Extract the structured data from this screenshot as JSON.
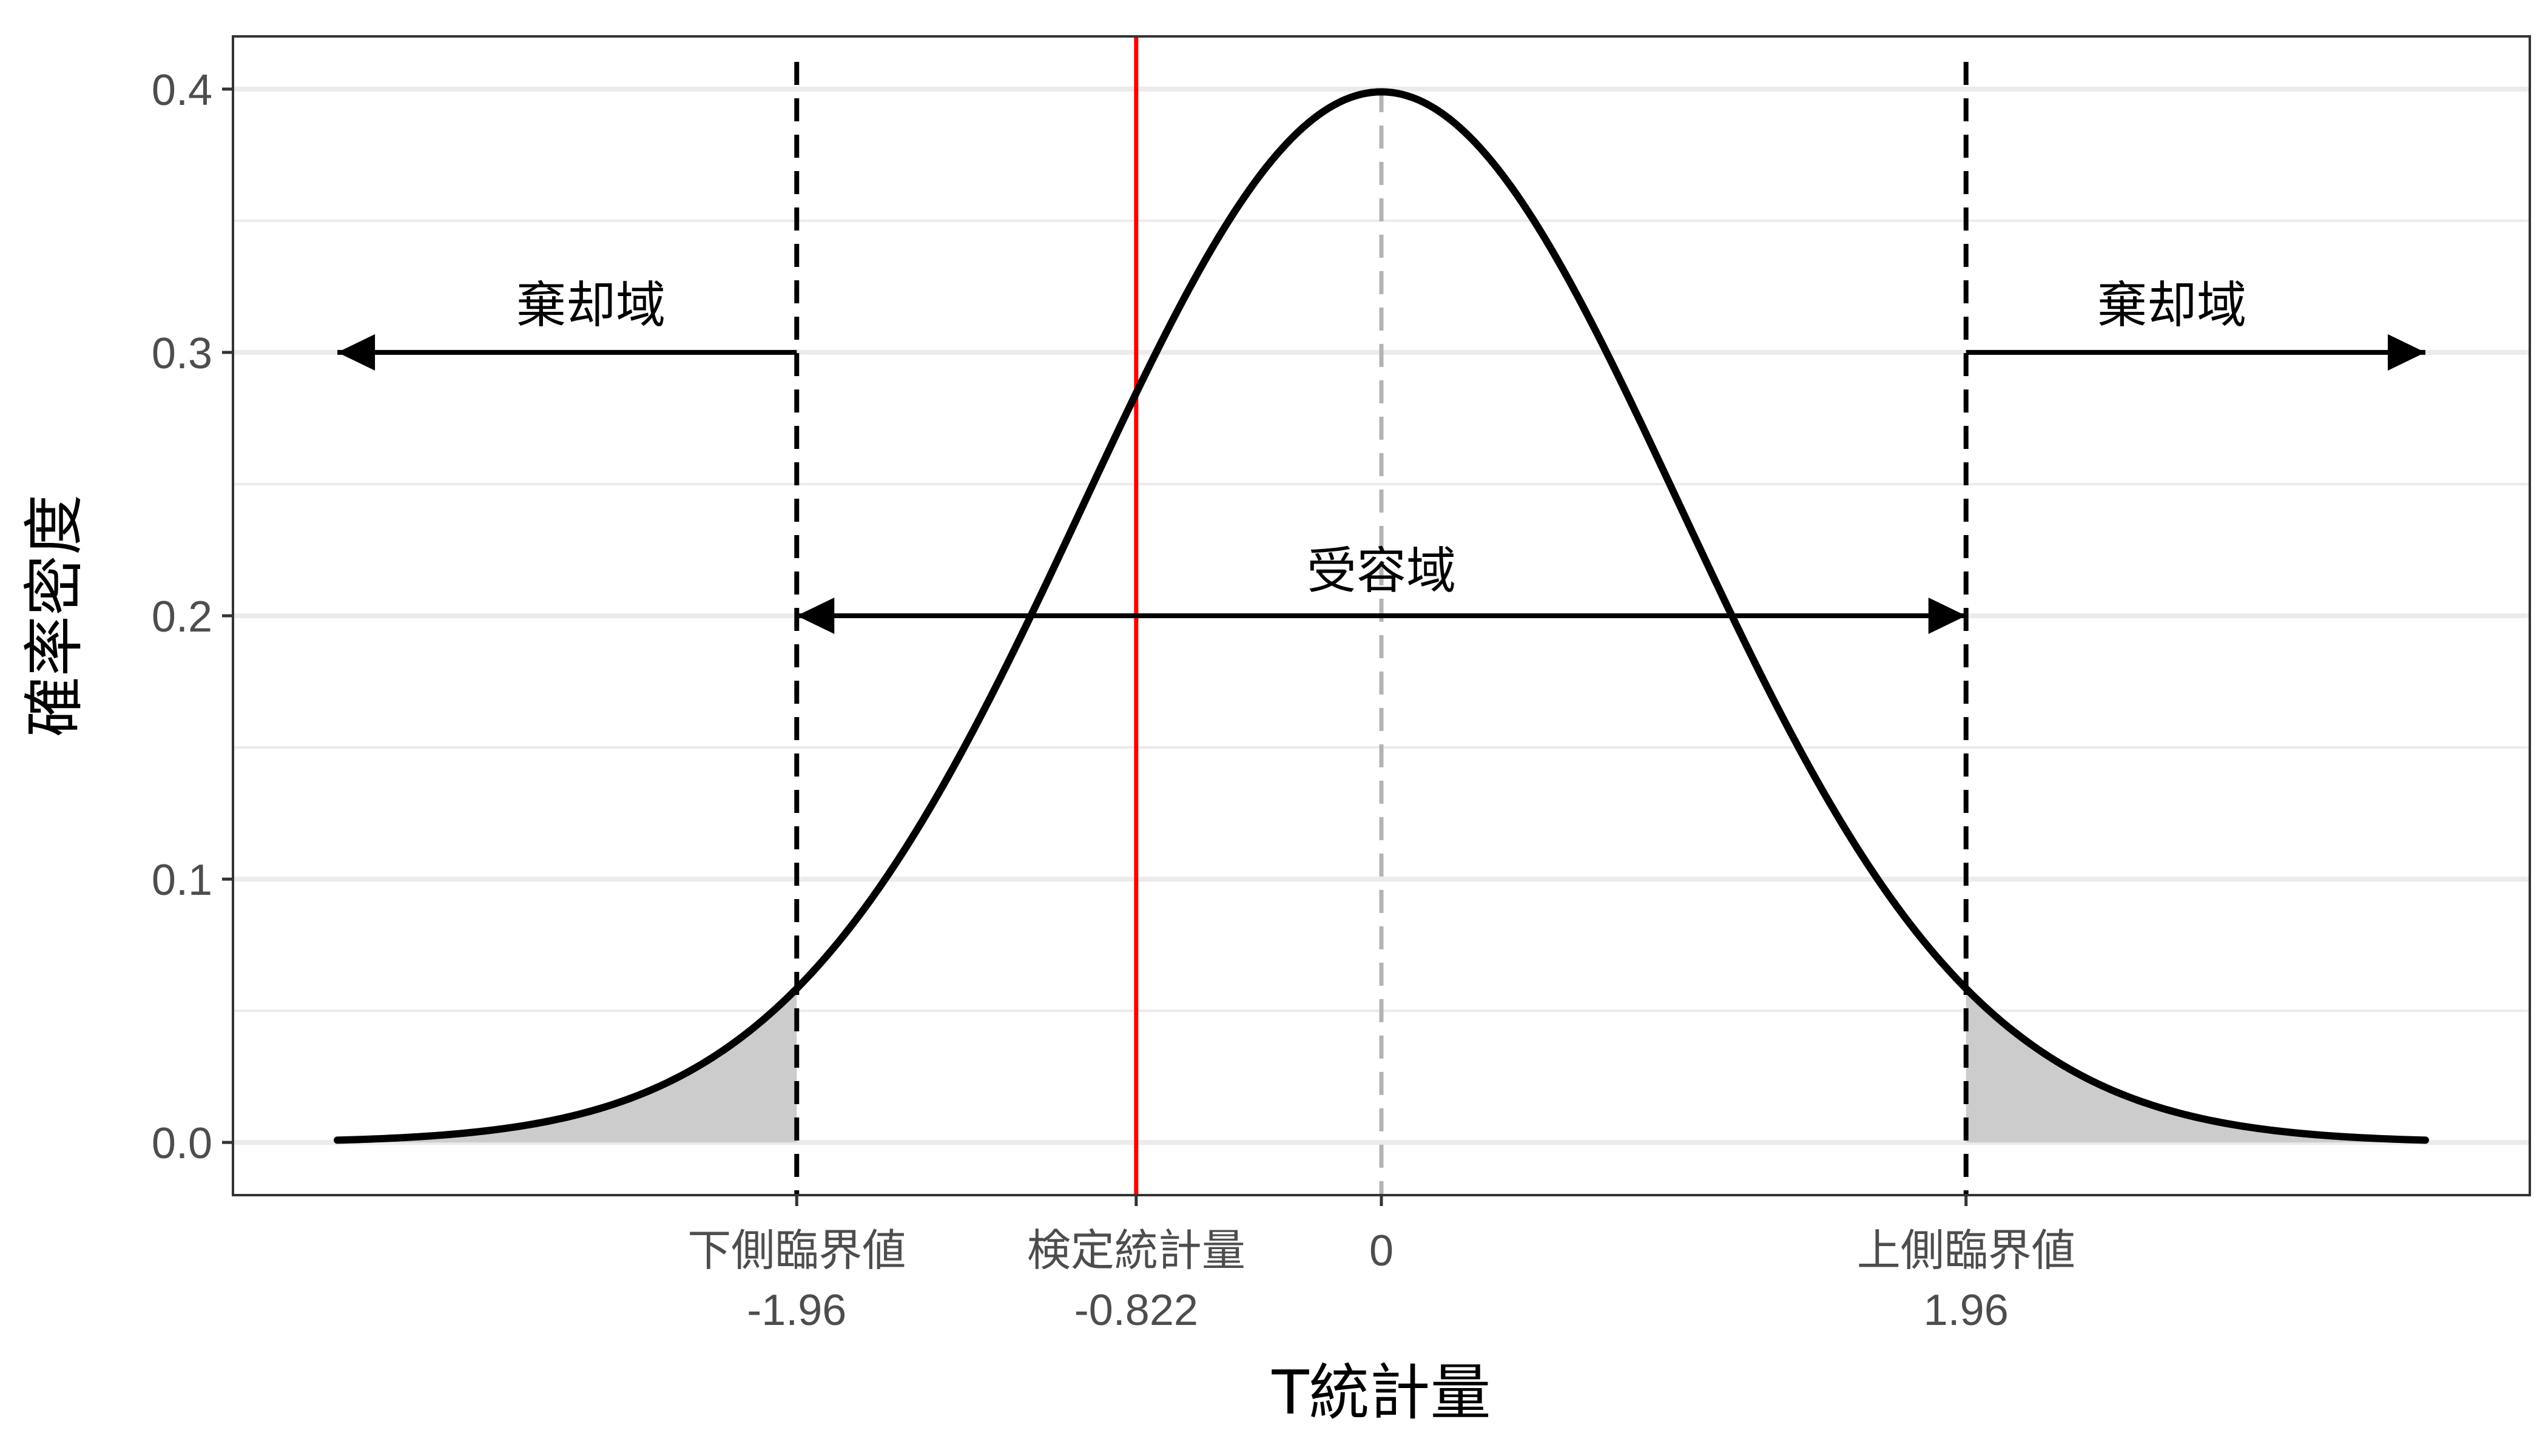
{
  "chart_data": {
    "type": "line",
    "distribution": "standard normal density",
    "x_range": [
      -3.5,
      3.5
    ],
    "xlim": [
      -3.85,
      3.85
    ],
    "ylim": [
      -0.02,
      0.42
    ],
    "xlabel": "T統計量",
    "ylabel": "確率密度",
    "grid": true,
    "theme": "bw",
    "y_ticks": [
      {
        "value": 0.0,
        "label": "0.0"
      },
      {
        "value": 0.1,
        "label": "0.1"
      },
      {
        "value": 0.2,
        "label": "0.2"
      },
      {
        "value": 0.3,
        "label": "0.3"
      },
      {
        "value": 0.4,
        "label": "0.4"
      }
    ],
    "y_minor_ticks": [
      0.05,
      0.15,
      0.25,
      0.35
    ],
    "x_ticks": [
      {
        "value": -1.96,
        "line1": "下側臨界値",
        "line2": "-1.96"
      },
      {
        "value": -0.822,
        "line1": "検定統計量",
        "line2": "-0.822"
      },
      {
        "value": 0,
        "line1": "0",
        "line2": ""
      },
      {
        "value": 1.96,
        "line1": "上側臨界値",
        "line2": "1.96"
      }
    ],
    "critical_lower": -1.96,
    "critical_upper": 1.96,
    "test_statistic": -0.822,
    "center": 0,
    "shaded_tails": [
      [
        -3.5,
        -1.96
      ],
      [
        1.96,
        3.5
      ]
    ],
    "annotations": [
      {
        "text": "棄却域",
        "x": -2.65,
        "y": 0.318
      },
      {
        "text": "棄却域",
        "x": 2.65,
        "y": 0.318
      },
      {
        "text": "受容域",
        "x": 0,
        "y": 0.217
      }
    ],
    "arrows": [
      {
        "from": [
          -1.96,
          0.3
        ],
        "to": [
          -3.5,
          0.3
        ],
        "heads": "end"
      },
      {
        "from": [
          1.96,
          0.3
        ],
        "to": [
          3.5,
          0.3
        ],
        "heads": "end"
      },
      {
        "from": [
          -1.96,
          0.2
        ],
        "to": [
          1.96,
          0.2
        ],
        "heads": "both"
      }
    ],
    "colors": {
      "curve": "#000000",
      "test_line": "#ff0000",
      "critical_lines": "#000000",
      "center_line": "#b3b3b3",
      "tail_fill": "#cccccc",
      "grid": "#ebebeb",
      "panel_border": "#333333"
    }
  }
}
